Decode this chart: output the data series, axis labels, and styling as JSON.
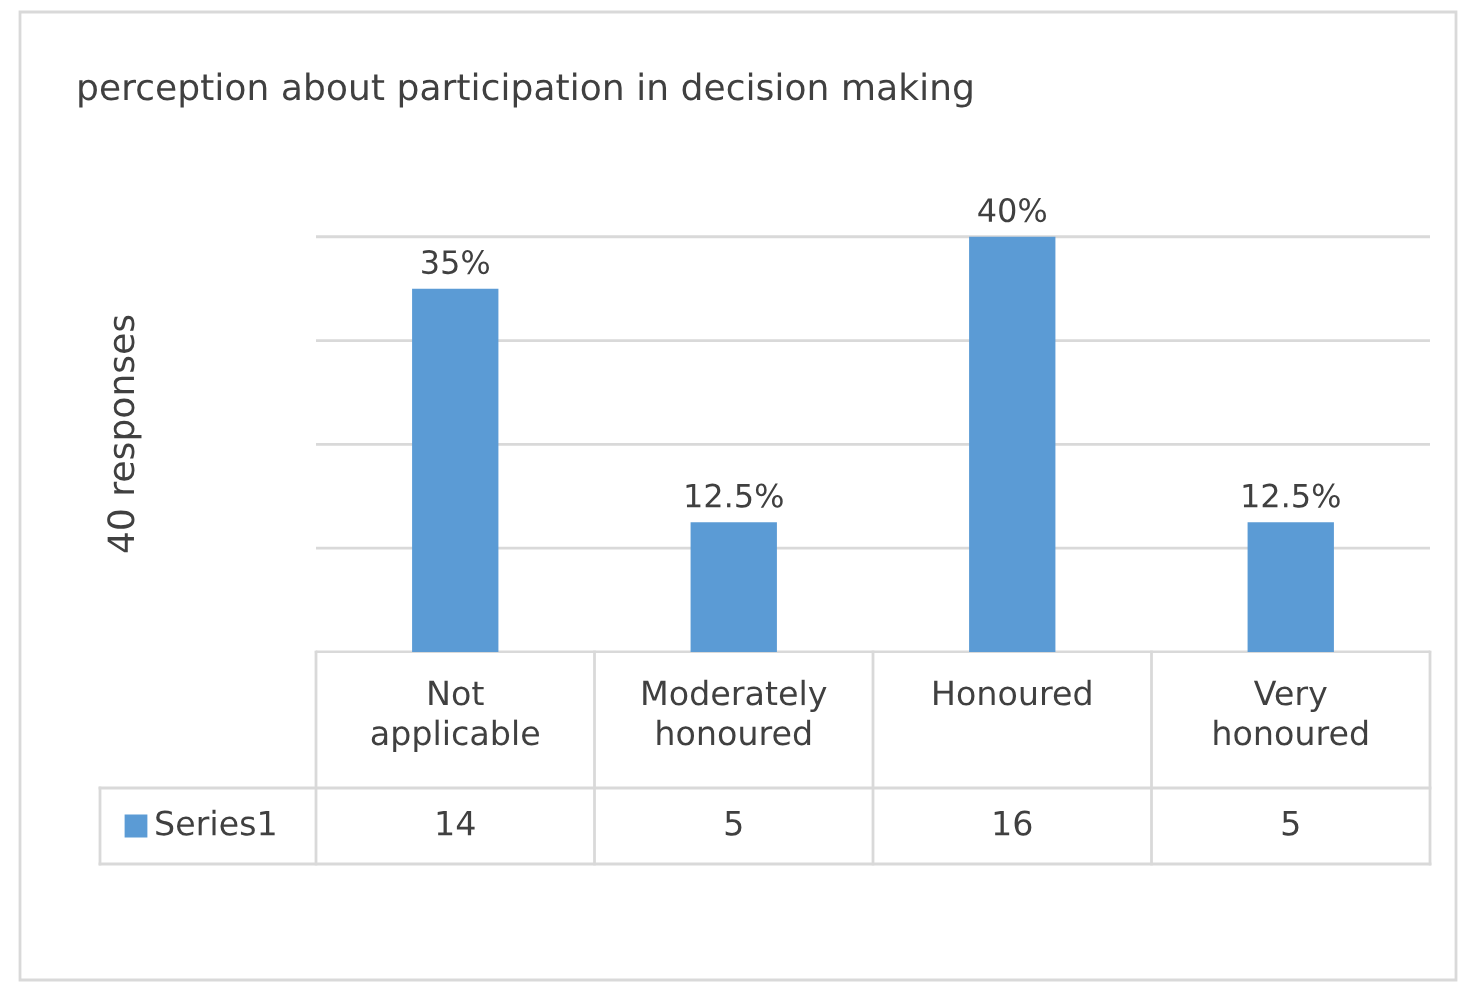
{
  "chart_data": {
    "type": "bar",
    "title": "perception about participation in decision making",
    "ylabel": "40 responses",
    "categories": [
      "Not applicable",
      "Moderately honoured",
      "Honoured",
      "Very honoured"
    ],
    "series": [
      {
        "name": "Series1",
        "color": "#5b9bd5",
        "values": [
          35,
          12.5,
          40,
          12.5
        ],
        "value_labels": [
          "35%",
          "12.5%",
          "40%",
          "12.5%"
        ]
      }
    ],
    "annotations": [
      "14",
      "5",
      "16",
      "5"
    ],
    "grid": "y",
    "tick_labels": "x"
  }
}
